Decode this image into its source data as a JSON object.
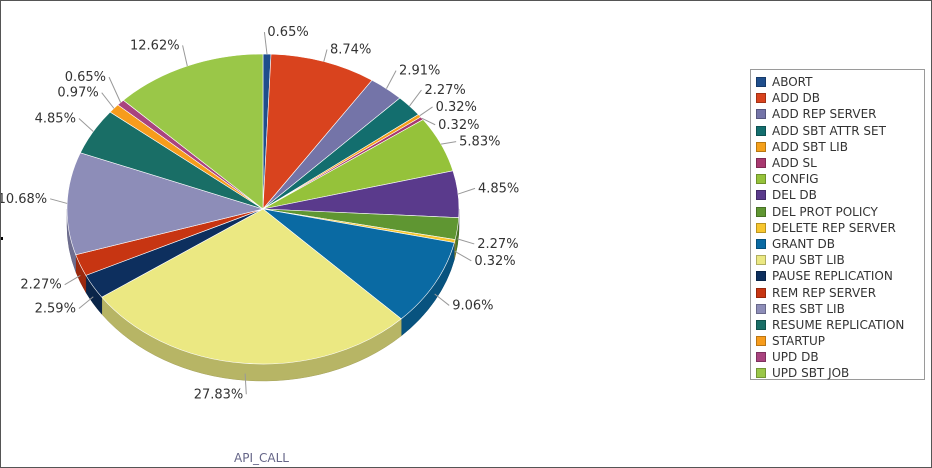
{
  "chart_data": {
    "type": "pie",
    "title": "",
    "xlabel": "API_CALL",
    "legend_position": "right",
    "categories": [
      "ABORT",
      "ADD DB",
      "ADD REP SERVER",
      "ADD SBT ATTR SET",
      "ADD SBT LIB",
      "ADD SL",
      "CONFIG",
      "DEL DB",
      "DEL PROT POLICY",
      "DELETE REP SERVER",
      "GRANT DB",
      "PAU SBT LIB",
      "PAUSE REPLICATION",
      "REM REP SERVER",
      "RES SBT LIB",
      "RESUME REPLICATION",
      "STARTUP",
      "UPD DB",
      "UPD SBT JOB"
    ],
    "values": [
      0.65,
      8.74,
      2.91,
      2.27,
      0.32,
      0.32,
      5.83,
      4.85,
      2.27,
      0.32,
      9.06,
      27.83,
      2.59,
      2.27,
      10.68,
      4.85,
      0.97,
      0.65,
      12.62
    ],
    "labels": [
      "0.65%",
      "8.74%",
      "2.91%",
      "2.27%",
      "0.32%",
      "0.32%",
      "5.83%",
      "4.85%",
      "2.27%",
      "0.32%",
      "9.06%",
      "27.83%",
      "2.59%",
      "2.27%",
      "10.68%",
      "4.85%",
      "0.97%",
      "0.65%",
      "12.62%"
    ],
    "colors": [
      "#1f4e8c",
      "#d9431e",
      "#7474a8",
      "#136e6e",
      "#f5a01a",
      "#a8386f",
      "#95c23a",
      "#5a3a8c",
      "#5f9632",
      "#f7c62e",
      "#0a6aa3",
      "#ebe882",
      "#0d2f5e",
      "#c73512",
      "#8d8db8",
      "#196e66",
      "#f79c1c",
      "#a9437f",
      "#9ac748"
    ]
  }
}
